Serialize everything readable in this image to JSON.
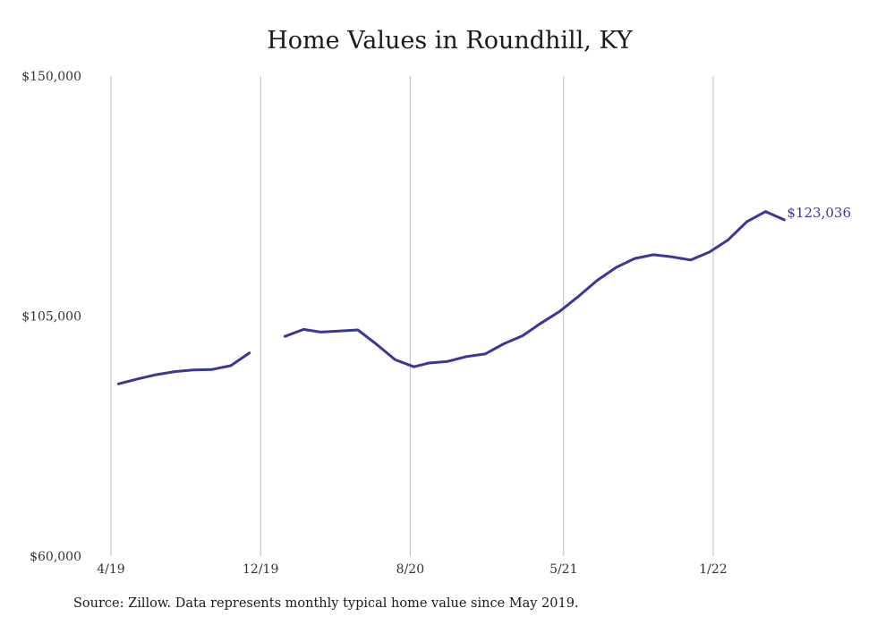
{
  "chart_data": {
    "type": "line",
    "title": "Home Values in Roundhill, KY",
    "xlabel": "",
    "ylabel": "",
    "ylim": [
      60000,
      150000
    ],
    "yticks": [
      60000,
      105000,
      150000
    ],
    "ytick_labels": [
      "$60,000",
      "$105,000",
      "$150,000"
    ],
    "xticks": [
      "4/19",
      "12/19",
      "8/20",
      "5/21",
      "1/22"
    ],
    "xtick_months": [
      0,
      8,
      16,
      24.2,
      32.2
    ],
    "grid": "vertical",
    "line_color": "#3b3796",
    "end_label": "$123,036",
    "series": [
      {
        "segments": [
          {
            "months": [
              0.4,
              1.4,
              2.4,
              3.4,
              4.4,
              5.4,
              6.4,
              7.4
            ],
            "values": [
              92300,
              93200,
              94000,
              94600,
              94900,
              95000,
              95700,
              98100
            ]
          },
          {
            "months": [
              9.3,
              10.3,
              11.2,
              12.2,
              13.2,
              14.2,
              15.2,
              16.2,
              17.0,
              18.0,
              19.0,
              20.0,
              21.0,
              22.0,
              23.0,
              24.0,
              25.0,
              26.0,
              27.0,
              28.0,
              29.0,
              30.0,
              31.0,
              32.0,
              33.0,
              34.0,
              35.0,
              36.0
            ],
            "values": [
              101200,
              102500,
              102000,
              102200,
              102400,
              99700,
              96800,
              95500,
              96200,
              96500,
              97400,
              97900,
              99800,
              101300,
              103700,
              105900,
              108700,
              111700,
              114100,
              115800,
              116500,
              116100,
              115500,
              117000,
              119300,
              122700,
              124600,
              123036
            ]
          }
        ]
      }
    ]
  },
  "source_note": "Source: Zillow. Data represents monthly typical home value since May 2019."
}
